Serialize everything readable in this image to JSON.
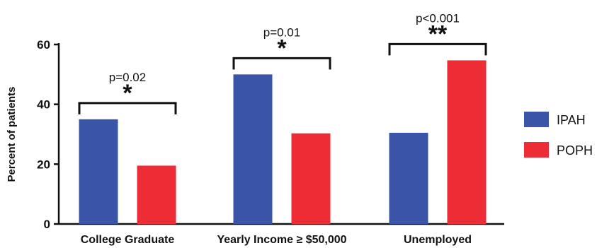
{
  "chart_data": {
    "type": "bar",
    "ylabel": "Percent of patients",
    "ylim": [
      0,
      60
    ],
    "yticks": [
      "0",
      "20",
      "40",
      "60"
    ],
    "categories": [
      "College Graduate",
      "Yearly Income ≥ $50,000",
      "Unemployed"
    ],
    "series": [
      {
        "name": "IPAH",
        "color": "#3a55a8",
        "values": [
          35,
          50,
          30.5
        ]
      },
      {
        "name": "POPH",
        "color": "#ee2c36",
        "values": [
          19.5,
          30.3,
          54.7
        ]
      }
    ],
    "significance": [
      {
        "p_label": "p=0.02",
        "stars": "*"
      },
      {
        "p_label": "p=0.01",
        "stars": "*"
      },
      {
        "p_label": "p<0.001",
        "stars": "**"
      }
    ],
    "legend_position": "right",
    "grid": false
  }
}
